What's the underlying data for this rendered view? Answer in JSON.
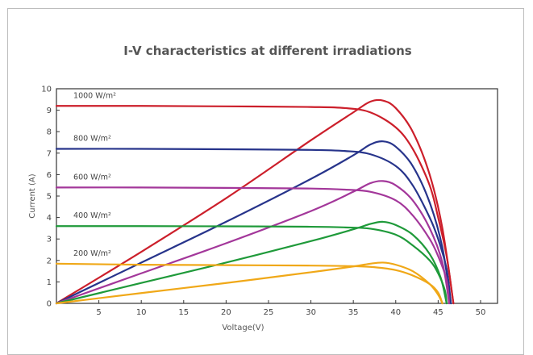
{
  "chart_data": {
    "type": "line",
    "title": "I-V characteristics at different irradiations",
    "xlabel": "Voltage(V)",
    "ylabel": "Current (A)",
    "xlim": [
      0,
      52
    ],
    "ylim": [
      0,
      10
    ],
    "x_ticks": [
      5,
      10,
      15,
      20,
      25,
      30,
      35,
      40,
      45,
      50
    ],
    "y_ticks": [
      0,
      1,
      2,
      3,
      4,
      5,
      6,
      7,
      8,
      9,
      10
    ],
    "grid": false,
    "legend": "inline labels",
    "series": [
      {
        "name": "1000 W/m²",
        "color": "#cc1f2b",
        "iv": [
          [
            0,
            9.2
          ],
          [
            10,
            9.2
          ],
          [
            20,
            9.18
          ],
          [
            30,
            9.15
          ],
          [
            34,
            9.1
          ],
          [
            37,
            8.9
          ],
          [
            40,
            8.2
          ],
          [
            42,
            7.2
          ],
          [
            44,
            5.5
          ],
          [
            45,
            4.0
          ],
          [
            46,
            2.2
          ],
          [
            46.8,
            0
          ]
        ],
        "pv": [
          [
            0,
            0
          ],
          [
            10,
            2.4
          ],
          [
            20,
            4.9
          ],
          [
            30,
            7.6
          ],
          [
            35,
            8.9
          ],
          [
            37,
            9.4
          ],
          [
            38.5,
            9.45
          ],
          [
            40,
            9.1
          ],
          [
            42,
            8.0
          ],
          [
            44,
            6.0
          ],
          [
            45.5,
            3.5
          ],
          [
            46.8,
            0
          ]
        ]
      },
      {
        "name": "800 W/m²",
        "color": "#27348b",
        "iv": [
          [
            0,
            7.2
          ],
          [
            10,
            7.2
          ],
          [
            20,
            7.18
          ],
          [
            30,
            7.15
          ],
          [
            34,
            7.1
          ],
          [
            37,
            6.95
          ],
          [
            40,
            6.4
          ],
          [
            42,
            5.5
          ],
          [
            44,
            4.0
          ],
          [
            45,
            3.0
          ],
          [
            46,
            1.6
          ],
          [
            46.5,
            0
          ]
        ],
        "pv": [
          [
            0,
            0
          ],
          [
            10,
            1.9
          ],
          [
            20,
            3.8
          ],
          [
            30,
            5.8
          ],
          [
            35,
            6.9
          ],
          [
            37,
            7.4
          ],
          [
            38.5,
            7.55
          ],
          [
            40,
            7.3
          ],
          [
            42,
            6.4
          ],
          [
            44,
            4.7
          ],
          [
            45.5,
            2.6
          ],
          [
            46.5,
            0
          ]
        ]
      },
      {
        "name": "600 W/m²",
        "color": "#a3379a",
        "iv": [
          [
            0,
            5.4
          ],
          [
            10,
            5.4
          ],
          [
            20,
            5.38
          ],
          [
            30,
            5.35
          ],
          [
            34,
            5.3
          ],
          [
            37,
            5.2
          ],
          [
            40,
            4.8
          ],
          [
            42,
            4.1
          ],
          [
            44,
            3.0
          ],
          [
            45,
            2.2
          ],
          [
            46,
            1.1
          ],
          [
            46.3,
            0
          ]
        ],
        "pv": [
          [
            0,
            0
          ],
          [
            10,
            1.4
          ],
          [
            20,
            2.8
          ],
          [
            30,
            4.3
          ],
          [
            35,
            5.2
          ],
          [
            37,
            5.6
          ],
          [
            38.5,
            5.7
          ],
          [
            40,
            5.5
          ],
          [
            42,
            4.8
          ],
          [
            44,
            3.5
          ],
          [
            45.5,
            1.9
          ],
          [
            46.3,
            0
          ]
        ]
      },
      {
        "name": "400 W/m²",
        "color": "#1f9a3a",
        "iv": [
          [
            0,
            3.6
          ],
          [
            10,
            3.6
          ],
          [
            20,
            3.59
          ],
          [
            30,
            3.57
          ],
          [
            34,
            3.54
          ],
          [
            37,
            3.48
          ],
          [
            40,
            3.2
          ],
          [
            42,
            2.7
          ],
          [
            44,
            2.0
          ],
          [
            45,
            1.4
          ],
          [
            45.8,
            0.6
          ],
          [
            46,
            0
          ]
        ],
        "pv": [
          [
            0,
            0
          ],
          [
            10,
            0.95
          ],
          [
            20,
            1.9
          ],
          [
            30,
            2.9
          ],
          [
            35,
            3.45
          ],
          [
            37,
            3.7
          ],
          [
            38.5,
            3.8
          ],
          [
            40,
            3.65
          ],
          [
            42,
            3.2
          ],
          [
            44,
            2.3
          ],
          [
            45.3,
            1.2
          ],
          [
            46,
            0
          ]
        ]
      },
      {
        "name": "200 W/m²",
        "color": "#f0a818",
        "iv": [
          [
            0,
            1.85
          ],
          [
            10,
            1.8
          ],
          [
            20,
            1.78
          ],
          [
            30,
            1.76
          ],
          [
            34,
            1.74
          ],
          [
            37,
            1.7
          ],
          [
            40,
            1.55
          ],
          [
            42,
            1.3
          ],
          [
            44,
            0.9
          ],
          [
            45,
            0.5
          ],
          [
            45.5,
            0
          ]
        ],
        "pv": [
          [
            0,
            0
          ],
          [
            10,
            0.48
          ],
          [
            20,
            0.95
          ],
          [
            30,
            1.45
          ],
          [
            35,
            1.72
          ],
          [
            37,
            1.85
          ],
          [
            38.5,
            1.9
          ],
          [
            40,
            1.8
          ],
          [
            42,
            1.5
          ],
          [
            44,
            0.9
          ],
          [
            45,
            0.4
          ],
          [
            45.5,
            0
          ]
        ]
      }
    ]
  }
}
